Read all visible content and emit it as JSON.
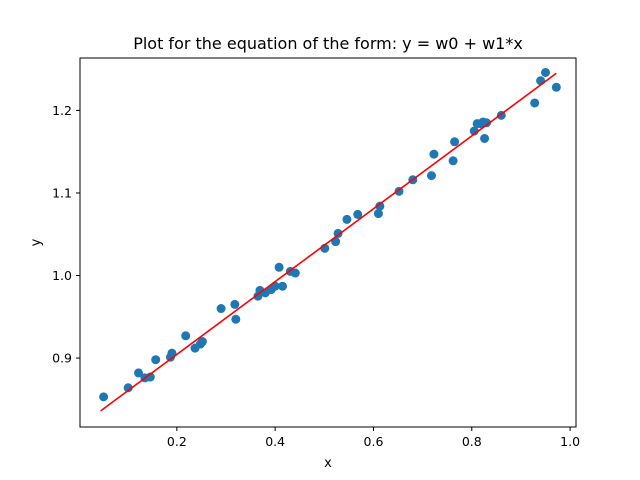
{
  "chart_data": {
    "type": "scatter",
    "title": "Plot for the equation of the form: y = w0 + w1*x",
    "xlabel": "x",
    "ylabel": "y",
    "xlim": [
      0.003,
      1.012
    ],
    "ylim": [
      0.8165,
      1.2635
    ],
    "xticks": [
      0.2,
      0.4,
      0.6,
      0.8,
      1.0
    ],
    "xtick_labels": [
      "0.2",
      "0.4",
      "0.6",
      "0.8",
      "1.0"
    ],
    "yticks": [
      0.9,
      1.0,
      1.1,
      1.2
    ],
    "ytick_labels": [
      "0.9",
      "1.0",
      "1.1",
      "1.2"
    ],
    "grid": false,
    "colors": {
      "points": "#1f77b4",
      "line": "#ff0000"
    },
    "series": [
      {
        "type": "scatter",
        "points": [
          [
            0.051,
            0.853
          ],
          [
            0.101,
            0.864
          ],
          [
            0.122,
            0.882
          ],
          [
            0.135,
            0.876
          ],
          [
            0.146,
            0.877
          ],
          [
            0.157,
            0.898
          ],
          [
            0.187,
            0.901
          ],
          [
            0.19,
            0.906
          ],
          [
            0.218,
            0.927
          ],
          [
            0.237,
            0.912
          ],
          [
            0.248,
            0.917
          ],
          [
            0.252,
            0.92
          ],
          [
            0.29,
            0.96
          ],
          [
            0.318,
            0.965
          ],
          [
            0.32,
            0.947
          ],
          [
            0.365,
            0.975
          ],
          [
            0.369,
            0.982
          ],
          [
            0.38,
            0.979
          ],
          [
            0.392,
            0.983
          ],
          [
            0.4,
            0.987
          ],
          [
            0.408,
            1.01
          ],
          [
            0.415,
            0.987
          ],
          [
            0.431,
            1.005
          ],
          [
            0.441,
            1.003
          ],
          [
            0.501,
            1.033
          ],
          [
            0.523,
            1.041
          ],
          [
            0.528,
            1.051
          ],
          [
            0.546,
            1.068
          ],
          [
            0.568,
            1.074
          ],
          [
            0.61,
            1.075
          ],
          [
            0.613,
            1.084
          ],
          [
            0.652,
            1.102
          ],
          [
            0.68,
            1.116
          ],
          [
            0.718,
            1.121
          ],
          [
            0.723,
            1.147
          ],
          [
            0.762,
            1.139
          ],
          [
            0.765,
            1.162
          ],
          [
            0.805,
            1.175
          ],
          [
            0.811,
            1.184
          ],
          [
            0.818,
            1.184
          ],
          [
            0.823,
            1.186
          ],
          [
            0.826,
            1.166
          ],
          [
            0.83,
            1.185
          ],
          [
            0.86,
            1.194
          ],
          [
            0.928,
            1.209
          ],
          [
            0.94,
            1.236
          ],
          [
            0.95,
            1.246
          ],
          [
            0.972,
            1.228
          ]
        ]
      },
      {
        "type": "line",
        "points": [
          [
            0.045,
            0.836
          ],
          [
            0.972,
            1.245
          ]
        ]
      }
    ]
  }
}
